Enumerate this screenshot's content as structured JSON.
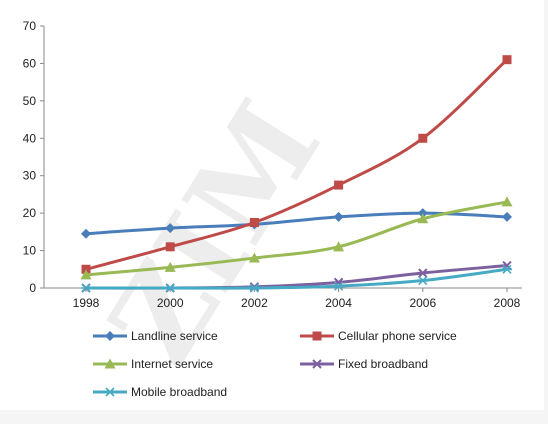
{
  "watermark": "ZIM",
  "chart_data": {
    "type": "line",
    "x": [
      1998,
      2000,
      2002,
      2004,
      2006,
      2008
    ],
    "xticks": [
      "1998",
      "2000",
      "2002",
      "2004",
      "2006",
      "2008"
    ],
    "ylim": [
      0,
      70
    ],
    "yticks": [
      0,
      10,
      20,
      30,
      40,
      50,
      60,
      70
    ],
    "grid": false,
    "legend_position": "bottom",
    "title": "",
    "xlabel": "",
    "ylabel": "",
    "series": [
      {
        "name": "Landline service",
        "color": "#4a7ebb",
        "marker": "diamond",
        "values": [
          14.5,
          16,
          17,
          19,
          20,
          19
        ]
      },
      {
        "name": "Cellular phone service",
        "color": "#be4b48",
        "marker": "square",
        "values": [
          5,
          11,
          17.5,
          27.5,
          40,
          61
        ]
      },
      {
        "name": "Internet service",
        "color": "#98b954",
        "marker": "triangle",
        "values": [
          3.5,
          5.5,
          8,
          11,
          18.5,
          23
        ]
      },
      {
        "name": "Fixed broadband",
        "color": "#7d60a0",
        "marker": "x",
        "values": [
          0,
          0,
          0.3,
          1.5,
          4,
          6
        ]
      },
      {
        "name": "Mobile broadband",
        "color": "#46aac5",
        "marker": "asterisk",
        "values": [
          0,
          0,
          0,
          0.5,
          2,
          5
        ]
      }
    ]
  }
}
